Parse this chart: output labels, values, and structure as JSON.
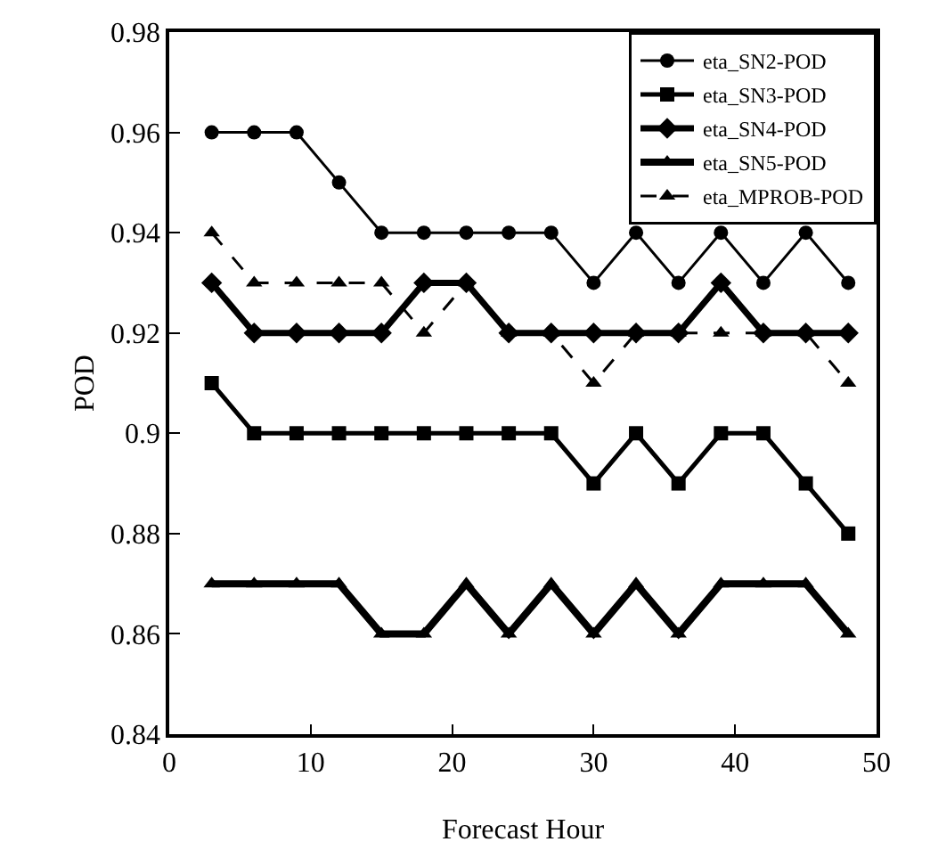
{
  "chart_data": {
    "type": "line",
    "xlabel": "Forecast Hour",
    "ylabel": "POD",
    "x": [
      3,
      6,
      9,
      12,
      15,
      18,
      21,
      24,
      27,
      30,
      33,
      36,
      39,
      42,
      45,
      48
    ],
    "xlim": [
      0,
      50
    ],
    "xticks": [
      0,
      10,
      20,
      30,
      40,
      50
    ],
    "ylim": [
      0.84,
      0.98
    ],
    "yticks": [
      0.84,
      0.86,
      0.88,
      0.9,
      0.92,
      0.94,
      0.96,
      0.98
    ],
    "grid": false,
    "legend": "top right",
    "series": [
      {
        "name": "eta_SN2-POD",
        "color": "#000000",
        "marker": "circle",
        "line_style": "solid",
        "values": [
          0.96,
          0.96,
          0.96,
          0.95,
          0.94,
          0.94,
          0.94,
          0.94,
          0.94,
          0.93,
          0.94,
          0.93,
          0.94,
          0.93,
          0.94,
          0.93
        ]
      },
      {
        "name": "eta_SN3-POD",
        "color": "#000000",
        "marker": "square",
        "line_style": "solid",
        "values": [
          0.91,
          0.9,
          0.9,
          0.9,
          0.9,
          0.9,
          0.9,
          0.9,
          0.9,
          0.89,
          0.9,
          0.89,
          0.9,
          0.9,
          0.89,
          0.88
        ]
      },
      {
        "name": "eta_SN4-POD",
        "color": "#000000",
        "marker": "diamond",
        "line_style": "solid",
        "values": [
          0.93,
          0.92,
          0.92,
          0.92,
          0.92,
          0.93,
          0.93,
          0.92,
          0.92,
          0.92,
          0.92,
          0.92,
          0.93,
          0.92,
          0.92,
          0.92
        ]
      },
      {
        "name": "eta_SN5-POD",
        "color": "#000000",
        "marker": "triangle",
        "line_style": "solid",
        "values": [
          0.87,
          0.87,
          0.87,
          0.87,
          0.86,
          0.86,
          0.87,
          0.86,
          0.87,
          0.86,
          0.87,
          0.86,
          0.87,
          0.87,
          0.87,
          0.86
        ]
      },
      {
        "name": "eta_MPROB-POD",
        "color": "#000000",
        "marker": "triangle",
        "line_style": "dashed",
        "values": [
          0.94,
          0.93,
          0.93,
          0.93,
          0.93,
          0.92,
          0.93,
          0.92,
          0.92,
          0.91,
          0.92,
          0.92,
          0.92,
          0.92,
          0.92,
          0.91
        ]
      }
    ]
  }
}
